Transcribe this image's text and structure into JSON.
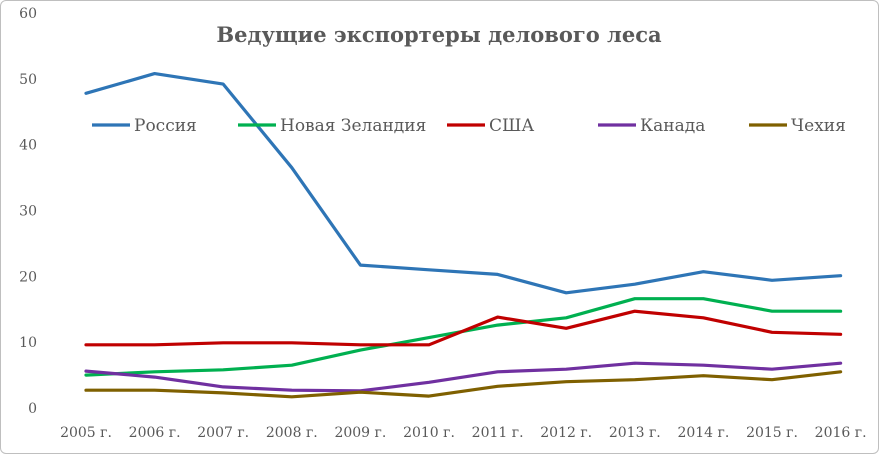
{
  "chart_data": {
    "type": "line",
    "title": "Ведущие экспортеры делового леса",
    "xlabel": "",
    "ylabel": "",
    "categories": [
      "2005 г.",
      "2006 г.",
      "2007 г.",
      "2008 г.",
      "2009 г.",
      "2010 г.",
      "2011 г.",
      "2012 г.",
      "2013 г.",
      "2014 г.",
      "2015 г.",
      "2016 г."
    ],
    "ylim": [
      0,
      60
    ],
    "yticks": [
      "0",
      "10",
      "20",
      "30",
      "40",
      "50",
      "60"
    ],
    "grid": false,
    "legend_position": "top",
    "series": [
      {
        "name": "Россия",
        "color": "#2e75b6",
        "values": [
          47.8,
          50.8,
          49.2,
          36.5,
          21.7,
          21.0,
          20.3,
          17.5,
          18.8,
          20.7,
          19.4,
          20.1
        ]
      },
      {
        "name": "Новая Зеландия",
        "color": "#00b050",
        "values": [
          5.0,
          5.5,
          5.8,
          6.5,
          8.8,
          10.7,
          12.6,
          13.7,
          16.6,
          16.6,
          14.7,
          14.7
        ]
      },
      {
        "name": "США",
        "color": "#c00000",
        "values": [
          9.6,
          9.6,
          9.9,
          9.9,
          9.6,
          9.6,
          13.8,
          12.1,
          14.7,
          13.7,
          11.5,
          11.2
        ]
      },
      {
        "name": "Канада",
        "color": "#7030a0",
        "values": [
          5.6,
          4.7,
          3.2,
          2.7,
          2.6,
          3.9,
          5.5,
          5.9,
          6.8,
          6.5,
          5.9,
          6.8
        ]
      },
      {
        "name": "Чехия",
        "color": "#7f6000",
        "values": [
          2.7,
          2.7,
          2.3,
          1.7,
          2.4,
          1.8,
          3.3,
          4.0,
          4.3,
          4.9,
          4.3,
          5.5
        ]
      }
    ]
  }
}
